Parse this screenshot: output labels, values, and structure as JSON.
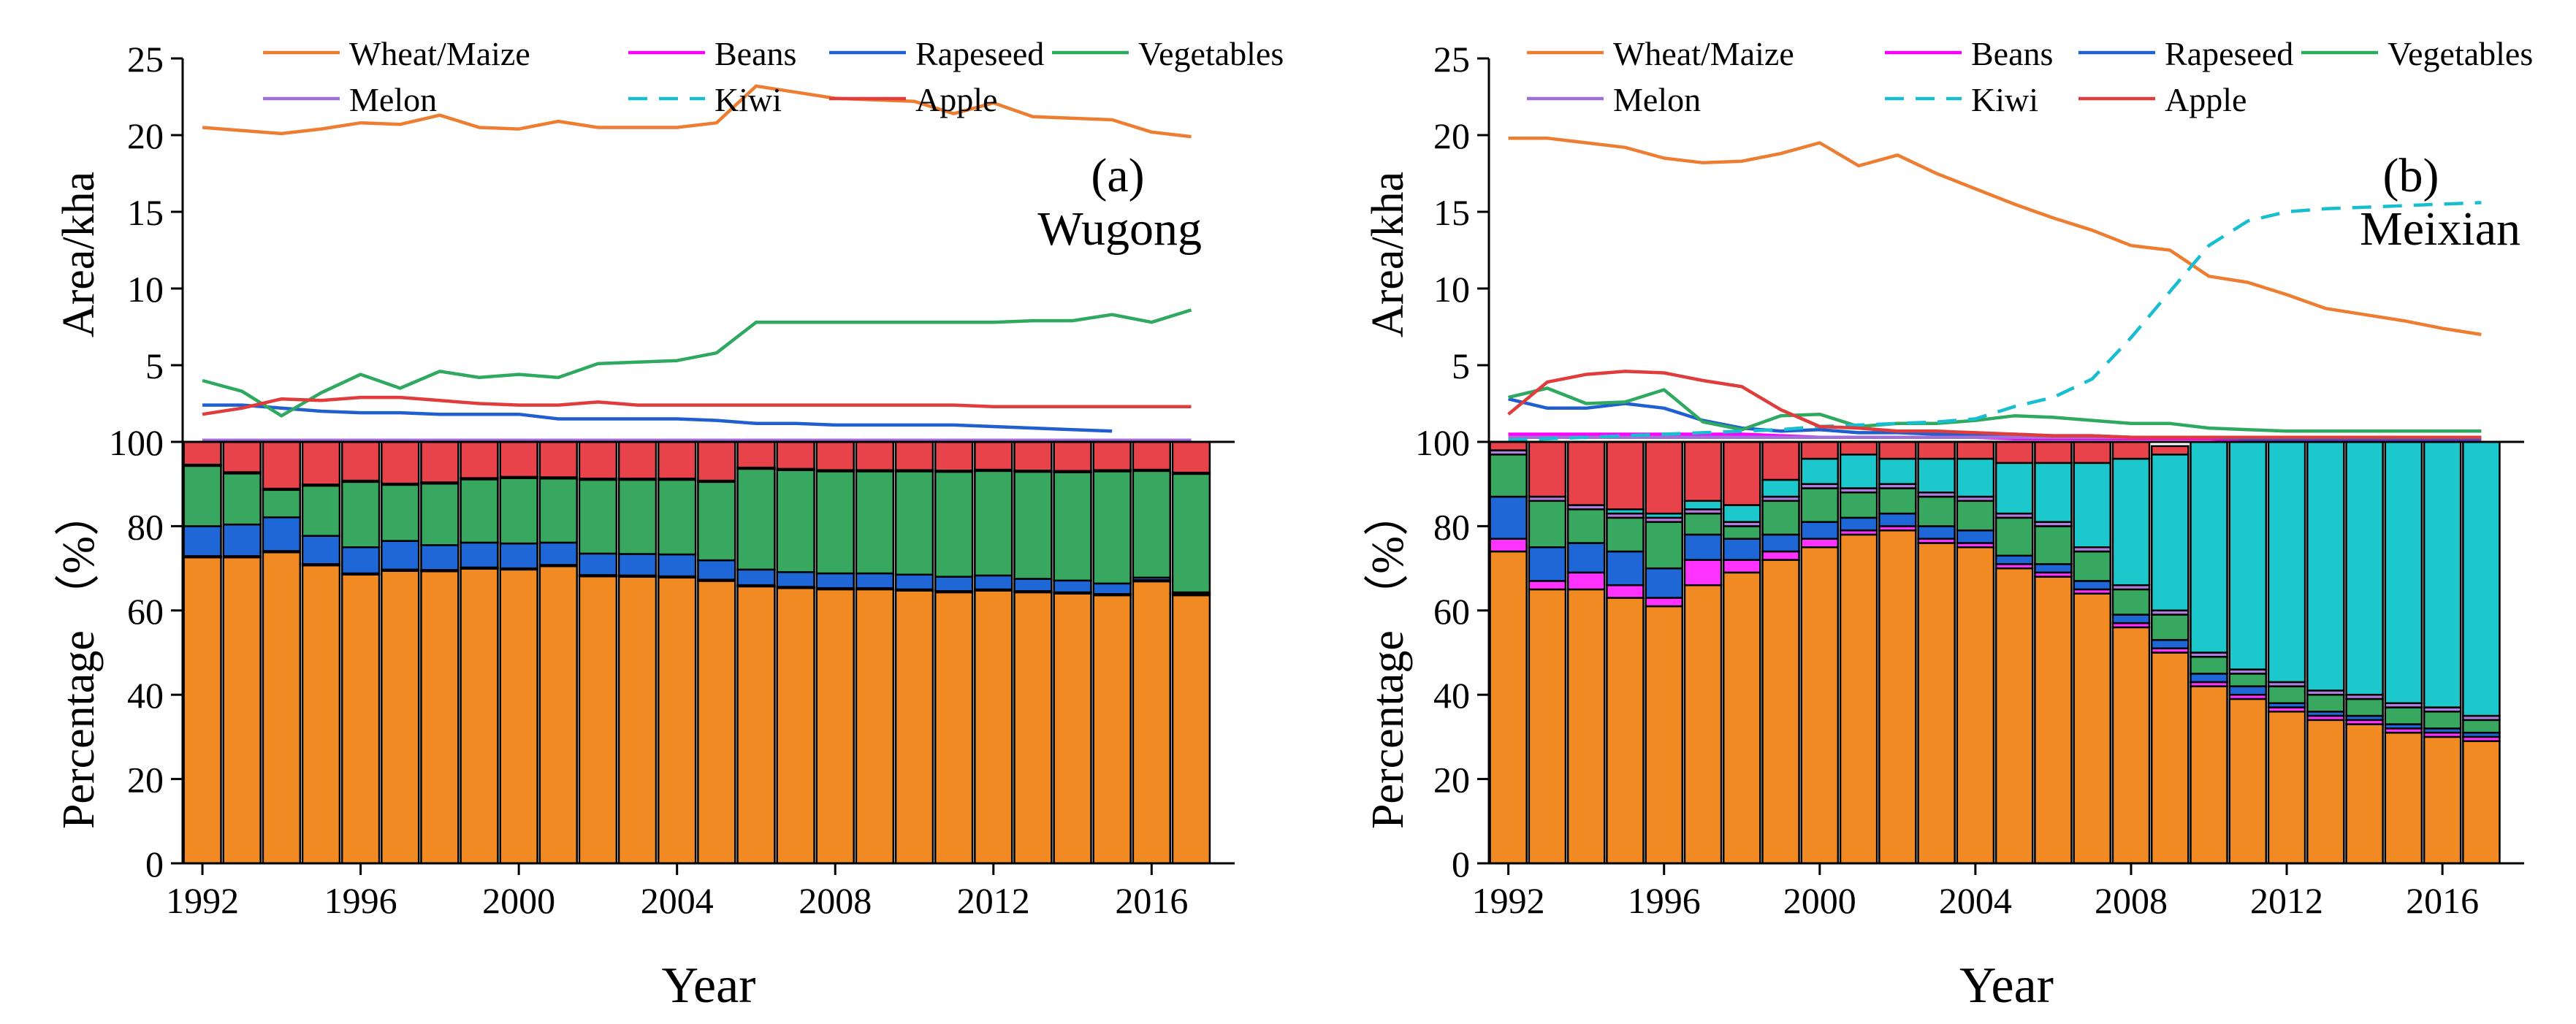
{
  "figure": {
    "legend_entries": [
      {
        "key": "wheat",
        "label": "Wheat/Maize",
        "color": "#ED7D31",
        "style": "solid"
      },
      {
        "key": "beans",
        "label": "Beans",
        "color": "#FF00FF",
        "style": "solid"
      },
      {
        "key": "rapeseed",
        "label": "Rapeseed",
        "color": "#1F5FD0",
        "style": "solid"
      },
      {
        "key": "vegetables",
        "label": "Vegetables",
        "color": "#2FA860",
        "style": "solid"
      },
      {
        "key": "melon",
        "label": "Melon",
        "color": "#A070D8",
        "style": "solid"
      },
      {
        "key": "kiwi",
        "label": "Kiwi",
        "color": "#17BECF",
        "style": "dashed"
      },
      {
        "key": "apple",
        "label": "Apple",
        "color": "#E03C3C",
        "style": "solid"
      }
    ],
    "bar_colors": {
      "wheat": "#F28A24",
      "beans": "#FF33FF",
      "rapeseed": "#1F66D6",
      "vegetables": "#38A860",
      "melon": "#B07EE0",
      "kiwi": "#1CC8CC",
      "apple": "#E8424A"
    }
  },
  "chart_data": [
    {
      "type": "line",
      "panel": "a",
      "panel_label": "(a)",
      "location": "Wugong",
      "ylabel": "Area/kha",
      "ylim": [
        0,
        25
      ],
      "yticks": [
        5,
        10,
        15,
        20,
        25
      ],
      "x": [
        1992,
        1993,
        1994,
        1995,
        1996,
        1997,
        1998,
        1999,
        2000,
        2001,
        2002,
        2003,
        2004,
        2005,
        2006,
        2007,
        2008,
        2009,
        2010,
        2011,
        2012,
        2013,
        2014,
        2015,
        2016,
        2017
      ],
      "series": [
        {
          "key": "wheat",
          "name": "Wheat/Maize",
          "values": [
            20.5,
            20.3,
            20.1,
            20.4,
            20.8,
            20.7,
            21.3,
            20.5,
            20.4,
            20.9,
            20.5,
            20.5,
            20.5,
            20.8,
            23.2,
            22.8,
            22.4,
            22.3,
            22.2,
            21.4,
            22.1,
            21.2,
            21.1,
            21.0,
            20.2,
            19.9
          ]
        },
        {
          "key": "beans",
          "name": "Beans",
          "values": [
            0.1,
            0.1,
            0.1,
            0.1,
            0.1,
            0.1,
            0.1,
            0.1,
            0.1,
            0.1,
            0.1,
            0.1,
            0.1,
            0.1,
            0.1,
            0.1,
            0.1,
            0.1,
            0.1,
            0.1,
            0.1,
            0.1,
            0.1,
            0.1,
            0.1,
            0.1
          ]
        },
        {
          "key": "rapeseed",
          "name": "Rapeseed",
          "values": [
            2.4,
            2.4,
            2.2,
            2.0,
            1.9,
            1.9,
            1.8,
            1.8,
            1.8,
            1.5,
            1.5,
            1.5,
            1.5,
            1.4,
            1.2,
            1.2,
            1.1,
            1.1,
            1.1,
            1.1,
            1.0,
            0.9,
            0.8,
            0.7,
            null,
            null
          ]
        },
        {
          "key": "vegetables",
          "name": "Vegetables",
          "values": [
            4.0,
            3.3,
            1.7,
            3.2,
            4.4,
            3.5,
            4.6,
            4.2,
            4.4,
            4.2,
            5.1,
            5.2,
            5.3,
            5.8,
            7.8,
            7.8,
            7.8,
            7.8,
            7.8,
            7.8,
            7.8,
            7.9,
            7.9,
            8.3,
            7.8,
            8.6
          ]
        },
        {
          "key": "melon",
          "name": "Melon",
          "values": [
            0.1,
            0.1,
            0.1,
            0.1,
            0.1,
            0.1,
            0.1,
            0.1,
            0.1,
            0.1,
            0.1,
            0.1,
            0.1,
            0.1,
            0.1,
            0.1,
            0.1,
            0.1,
            0.1,
            0.1,
            0.1,
            0.1,
            0.1,
            0.1,
            0.1,
            0.1
          ]
        },
        {
          "key": "kiwi",
          "name": "Kiwi",
          "values": [
            null,
            null,
            null,
            null,
            null,
            null,
            null,
            null,
            null,
            null,
            null,
            null,
            null,
            null,
            null,
            null,
            null,
            null,
            null,
            null,
            null,
            null,
            null,
            null,
            null,
            null
          ]
        },
        {
          "key": "apple",
          "name": "Apple",
          "values": [
            1.8,
            2.2,
            2.8,
            2.7,
            2.9,
            2.9,
            2.7,
            2.5,
            2.4,
            2.4,
            2.6,
            2.4,
            2.4,
            2.4,
            2.4,
            2.4,
            2.4,
            2.4,
            2.4,
            2.4,
            2.3,
            2.3,
            2.3,
            2.3,
            2.3,
            2.3
          ]
        }
      ]
    },
    {
      "type": "bar",
      "stacked": true,
      "panel": "a",
      "xlabel": "Year",
      "ylabel": "Percentage （%）",
      "ylim": [
        0,
        100
      ],
      "yticks": [
        0,
        20,
        40,
        60,
        80,
        100
      ],
      "xticks": [
        1992,
        1996,
        2000,
        2004,
        2008,
        2012,
        2016
      ],
      "categories": [
        1992,
        1993,
        1994,
        1995,
        1996,
        1997,
        1998,
        1999,
        2000,
        2001,
        2002,
        2003,
        2004,
        2005,
        2006,
        2007,
        2008,
        2009,
        2010,
        2011,
        2012,
        2013,
        2014,
        2015,
        2016,
        2017
      ],
      "series": [
        {
          "key": "wheat",
          "name": "Wheat/Maize",
          "values": [
            72.6,
            72.6,
            73.8,
            70.7,
            68.5,
            69.4,
            69.3,
            69.9,
            69.7,
            70.5,
            68.1,
            68.0,
            67.8,
            67.0,
            65.7,
            65.3,
            65.0,
            65.0,
            64.7,
            64.3,
            64.7,
            64.3,
            64.0,
            63.6,
            66.9,
            63.6
          ]
        },
        {
          "key": "beans",
          "name": "Beans",
          "values": [
            0.3,
            0.3,
            0.3,
            0.3,
            0.3,
            0.3,
            0.3,
            0.3,
            0.3,
            0.3,
            0.3,
            0.3,
            0.3,
            0.3,
            0.3,
            0.3,
            0.3,
            0.3,
            0.3,
            0.3,
            0.3,
            0.3,
            0.3,
            0.3,
            0.3,
            0.3
          ]
        },
        {
          "key": "rapeseed",
          "name": "Rapeseed",
          "values": [
            7.1,
            7.5,
            8.0,
            6.7,
            6.2,
            6.8,
            5.9,
            5.9,
            5.9,
            5.3,
            5.1,
            5.1,
            5.2,
            4.6,
            3.7,
            3.5,
            3.5,
            3.5,
            3.5,
            3.4,
            3.3,
            2.9,
            2.8,
            2.5,
            0.6,
            0.4
          ]
        },
        {
          "key": "vegetables",
          "name": "Vegetables",
          "values": [
            14.3,
            12.1,
            6.5,
            11.9,
            15.5,
            13.3,
            14.6,
            15.0,
            15.5,
            15.2,
            17.5,
            17.6,
            17.7,
            18.6,
            23.9,
            24.2,
            24.2,
            24.2,
            24.5,
            24.9,
            24.8,
            25.4,
            25.7,
            26.6,
            25.3,
            28.1
          ]
        },
        {
          "key": "melon",
          "name": "Melon",
          "values": [
            0.3,
            0.3,
            0.3,
            0.3,
            0.3,
            0.3,
            0.3,
            0.3,
            0.3,
            0.3,
            0.3,
            0.3,
            0.3,
            0.3,
            0.3,
            0.3,
            0.3,
            0.3,
            0.3,
            0.3,
            0.3,
            0.3,
            0.3,
            0.3,
            0.3,
            0.3
          ]
        },
        {
          "key": "kiwi",
          "name": "Kiwi",
          "values": [
            0,
            0,
            0,
            0,
            0,
            0,
            0,
            0,
            0,
            0,
            0,
            0,
            0,
            0,
            0,
            0,
            0,
            0,
            0,
            0,
            0,
            0,
            0,
            0,
            0,
            0
          ]
        },
        {
          "key": "apple",
          "name": "Apple",
          "values": [
            5.4,
            7.2,
            11.1,
            10.1,
            9.2,
            9.9,
            9.9,
            8.6,
            8.3,
            8.4,
            8.7,
            9.0,
            8.7,
            9.2,
            6.1,
            6.4,
            6.7,
            6.7,
            6.7,
            6.8,
            6.6,
            6.8,
            6.9,
            6.7,
            6.6,
            7.3
          ]
        }
      ]
    },
    {
      "type": "line",
      "panel": "b",
      "panel_label": "(b)",
      "location": "Meixian",
      "ylabel": "Area/kha",
      "ylim": [
        0,
        25
      ],
      "yticks": [
        5,
        10,
        15,
        20,
        25
      ],
      "x": [
        1992,
        1993,
        1994,
        1995,
        1996,
        1997,
        1998,
        1999,
        2000,
        2001,
        2002,
        2003,
        2004,
        2005,
        2006,
        2007,
        2008,
        2009,
        2010,
        2011,
        2012,
        2013,
        2014,
        2015,
        2016,
        2017
      ],
      "series": [
        {
          "key": "wheat",
          "name": "Wheat/Maize",
          "values": [
            19.8,
            19.8,
            19.5,
            19.2,
            18.5,
            18.2,
            18.3,
            18.8,
            19.5,
            18.0,
            18.7,
            17.5,
            16.5,
            15.5,
            14.6,
            13.8,
            12.8,
            12.5,
            10.8,
            10.4,
            9.6,
            8.7,
            8.3,
            7.9,
            7.4,
            7.0
          ]
        },
        {
          "key": "beans",
          "name": "Beans",
          "values": [
            0.5,
            0.5,
            0.5,
            0.5,
            0.5,
            0.5,
            0.5,
            0.4,
            0.3,
            0.3,
            0.3,
            0.3,
            0.3,
            0.2,
            0.2,
            0.2,
            0.2,
            0.2,
            0.2,
            0.1,
            0.1,
            0.1,
            0.1,
            0.1,
            0.1,
            0.1
          ]
        },
        {
          "key": "rapeseed",
          "name": "Rapeseed",
          "values": [
            2.8,
            2.2,
            2.2,
            2.5,
            2.2,
            1.4,
            0.9,
            0.7,
            0.8,
            0.6,
            0.6,
            0.5,
            0.5,
            0.5,
            0.4,
            0.4,
            0.3,
            0.3,
            0.3,
            0.2,
            0.2,
            0.2,
            0.2,
            0.2,
            0.2,
            0.2
          ]
        },
        {
          "key": "vegetables",
          "name": "Vegetables",
          "values": [
            2.9,
            3.5,
            2.5,
            2.6,
            3.4,
            1.3,
            0.8,
            1.7,
            1.8,
            1.0,
            1.2,
            1.2,
            1.4,
            1.7,
            1.6,
            1.4,
            1.2,
            1.2,
            0.9,
            0.8,
            0.7,
            0.7,
            0.7,
            0.7,
            0.7,
            0.7
          ]
        },
        {
          "key": "melon",
          "name": "Melon",
          "values": [
            0.3,
            0.3,
            0.3,
            0.3,
            0.3,
            0.3,
            0.3,
            0.3,
            0.3,
            0.3,
            0.3,
            0.3,
            0.3,
            0.3,
            0.3,
            0.3,
            0.3,
            0.3,
            0.3,
            0.3,
            0.3,
            0.3,
            0.3,
            0.3,
            0.3,
            0.3
          ]
        },
        {
          "key": "kiwi",
          "name": "Kiwi",
          "values": [
            0.1,
            0.2,
            0.3,
            0.4,
            0.5,
            0.6,
            0.7,
            0.8,
            1.0,
            1.1,
            1.2,
            1.3,
            1.5,
            2.3,
            2.9,
            4.1,
            6.8,
            9.8,
            12.8,
            14.4,
            15.0,
            15.2,
            15.3,
            15.4,
            15.5,
            15.6
          ]
        },
        {
          "key": "apple",
          "name": "Apple",
          "values": [
            1.8,
            3.9,
            4.4,
            4.6,
            4.5,
            4.0,
            3.6,
            2.1,
            1.0,
            0.9,
            0.7,
            0.7,
            0.6,
            0.5,
            0.4,
            0.4,
            0.3,
            0.3,
            0.3,
            0.3,
            0.3,
            0.3,
            0.3,
            0.3,
            0.3,
            0.3
          ]
        }
      ]
    },
    {
      "type": "bar",
      "stacked": true,
      "panel": "b",
      "xlabel": "Year",
      "ylabel": "Percentage （%）",
      "ylim": [
        0,
        100
      ],
      "yticks": [
        0,
        20,
        40,
        60,
        80,
        100
      ],
      "xticks": [
        1992,
        1996,
        2000,
        2004,
        2008,
        2012,
        2016
      ],
      "categories": [
        1992,
        1993,
        1994,
        1995,
        1996,
        1997,
        1998,
        1999,
        2000,
        2001,
        2002,
        2003,
        2004,
        2005,
        2006,
        2007,
        2008,
        2009,
        2010,
        2011,
        2012,
        2013,
        2014,
        2015,
        2016,
        2017
      ],
      "series": [
        {
          "key": "wheat",
          "name": "Wheat/Maize",
          "values": [
            74,
            65,
            65,
            63,
            61,
            66,
            69,
            72,
            75,
            78,
            79,
            76,
            75,
            70,
            68,
            64,
            56,
            50,
            42,
            39,
            36,
            34,
            33,
            31,
            30,
            29
          ]
        },
        {
          "key": "beans",
          "name": "Beans",
          "values": [
            3,
            2,
            4,
            3,
            2,
            6,
            3,
            2,
            2,
            1,
            1,
            1,
            1,
            1,
            1,
            1,
            1,
            1,
            1,
            1,
            1,
            1,
            1,
            1,
            1,
            1
          ]
        },
        {
          "key": "rapeseed",
          "name": "Rapeseed",
          "values": [
            10,
            8,
            7,
            8,
            7,
            6,
            5,
            4,
            4,
            3,
            3,
            3,
            3,
            2,
            2,
            2,
            2,
            2,
            2,
            2,
            1,
            1,
            1,
            1,
            1,
            1
          ]
        },
        {
          "key": "vegetables",
          "name": "Vegetables",
          "values": [
            10,
            11,
            8,
            8,
            11,
            5,
            3,
            8,
            8,
            6,
            6,
            7,
            7,
            9,
            9,
            7,
            6,
            6,
            4,
            3,
            4,
            4,
            4,
            4,
            4,
            3
          ]
        },
        {
          "key": "melon",
          "name": "Melon",
          "values": [
            1,
            1,
            1,
            1,
            1,
            1,
            1,
            1,
            1,
            1,
            1,
            1,
            1,
            1,
            1,
            1,
            1,
            1,
            1,
            1,
            1,
            1,
            1,
            1,
            1,
            1
          ]
        },
        {
          "key": "kiwi",
          "name": "Kiwi",
          "values": [
            0,
            0,
            0,
            1,
            1,
            2,
            4,
            4,
            6,
            8,
            6,
            8,
            9,
            12,
            14,
            20,
            30,
            37,
            50,
            54,
            57,
            59,
            60,
            62,
            63,
            65
          ]
        },
        {
          "key": "apple",
          "name": "Apple",
          "values": [
            2,
            13,
            15,
            16,
            17,
            14,
            15,
            9,
            4,
            3,
            4,
            4,
            4,
            5,
            5,
            5,
            4,
            2,
            0,
            0,
            0,
            0,
            0,
            0,
            0,
            0
          ]
        }
      ]
    }
  ]
}
